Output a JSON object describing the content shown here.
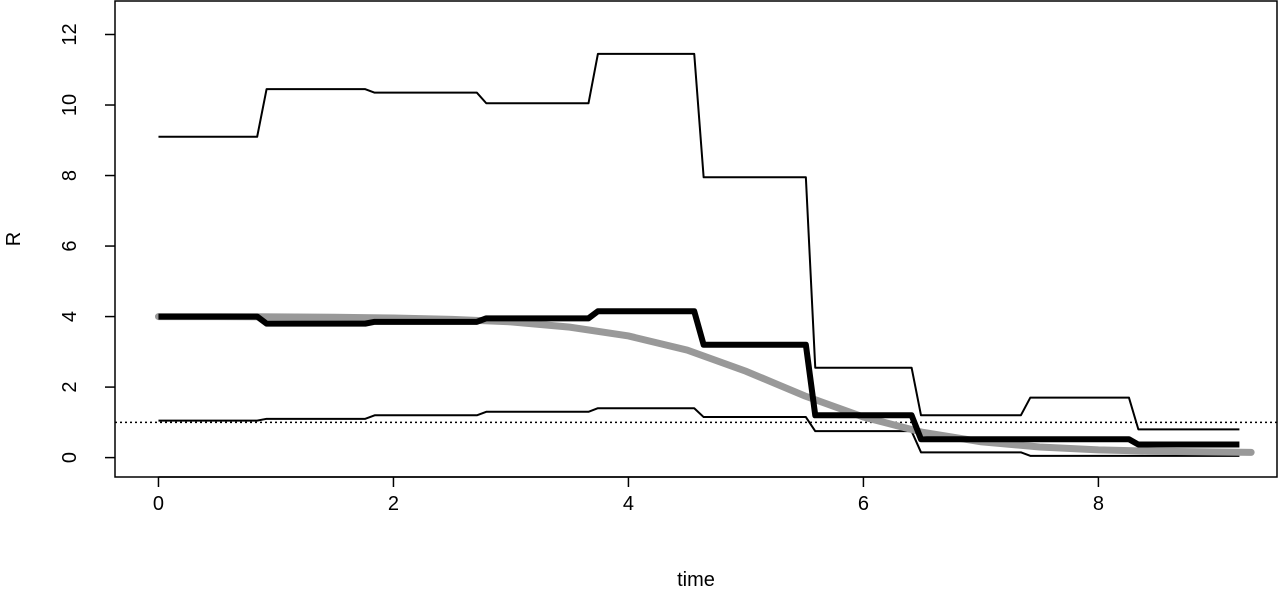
{
  "chart_data": {
    "type": "line",
    "title": "",
    "xlabel": "time",
    "ylabel": "R",
    "xlim": [
      -0.37,
      9.52
    ],
    "ylim": [
      -0.55,
      12.95
    ],
    "xticks": [
      0,
      2,
      4,
      6,
      8
    ],
    "yticks": [
      0,
      2,
      4,
      6,
      8,
      10,
      12
    ],
    "reference_line": {
      "y": 1,
      "style": "dotted"
    },
    "step_breaks": [
      0,
      0.88,
      1.8,
      2.75,
      3.7,
      4.6,
      5.55,
      6.45,
      7.38,
      8.3,
      9.2
    ],
    "series": [
      {
        "name": "upper",
        "style": "thin-black-step",
        "values": [
          9.1,
          10.45,
          10.35,
          10.05,
          11.45,
          7.95,
          2.55,
          1.2,
          1.7,
          0.8
        ]
      },
      {
        "name": "lower",
        "style": "thin-black-step",
        "values": [
          1.05,
          1.1,
          1.2,
          1.3,
          1.4,
          1.15,
          0.75,
          0.15,
          0.05,
          0.05
        ]
      },
      {
        "name": "estimate",
        "style": "thick-black-step",
        "values": [
          4.0,
          3.8,
          3.85,
          3.95,
          4.15,
          3.2,
          1.2,
          0.52,
          0.52,
          0.37
        ]
      },
      {
        "name": "true",
        "style": "thick-grey-curve",
        "x": [
          0,
          0.5,
          1,
          1.5,
          2,
          2.5,
          3,
          3.5,
          4,
          4.5,
          5,
          5.5,
          6,
          6.5,
          7,
          7.5,
          8,
          8.5,
          9,
          9.3
        ],
        "values": [
          4.0,
          4.0,
          3.99,
          3.98,
          3.96,
          3.92,
          3.85,
          3.7,
          3.45,
          3.05,
          2.45,
          1.75,
          1.15,
          0.72,
          0.45,
          0.3,
          0.22,
          0.18,
          0.16,
          0.15
        ]
      }
    ],
    "colors": {
      "line": "#000000",
      "truth": "#999999"
    }
  }
}
